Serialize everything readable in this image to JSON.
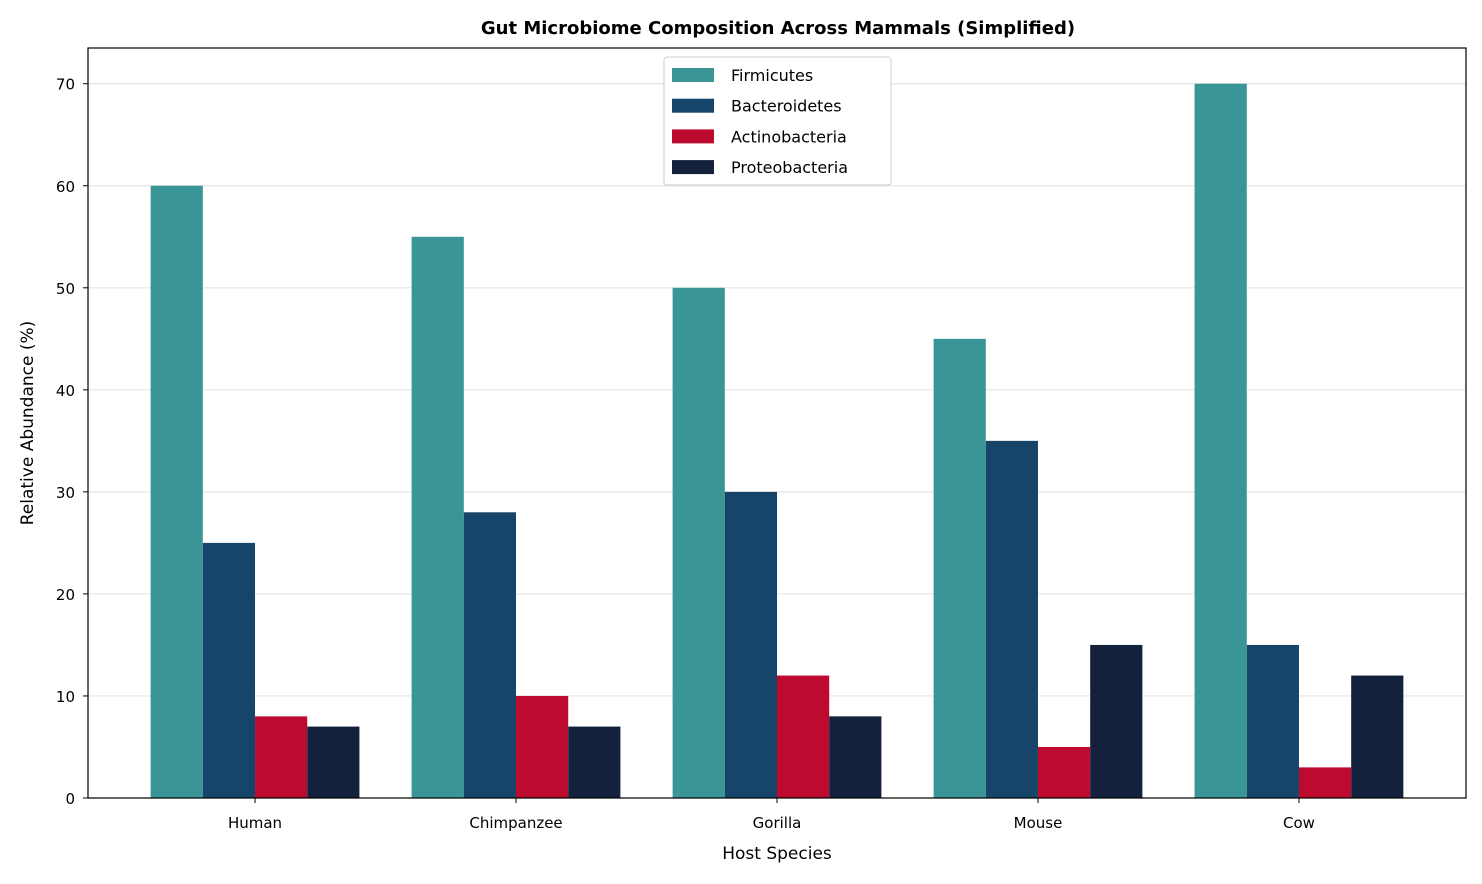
{
  "chart_data": {
    "type": "bar",
    "title": "Gut Microbiome Composition Across Mammals (Simplified)",
    "xlabel": "Host Species",
    "ylabel": "Relative Abundance (%)",
    "categories": [
      "Human",
      "Chimpanzee",
      "Gorilla",
      "Mouse",
      "Cow"
    ],
    "series": [
      {
        "name": "Firmicutes",
        "color": "#3a9696",
        "values": [
          60,
          55,
          50,
          45,
          70
        ]
      },
      {
        "name": "Bacteroidetes",
        "color": "#174569",
        "values": [
          25,
          28,
          30,
          35,
          15
        ]
      },
      {
        "name": "Actinobacteria",
        "color": "#bd0a2f",
        "values": [
          8,
          10,
          12,
          5,
          3
        ]
      },
      {
        "name": "Proteobacteria",
        "color": "#14213d",
        "values": [
          7,
          7,
          8,
          15,
          12
        ]
      }
    ],
    "ylim": [
      0,
      73.5
    ],
    "yticks": [
      0,
      10,
      20,
      30,
      40,
      50,
      60,
      70
    ],
    "grid": "horizontal",
    "legend": "top-center"
  }
}
